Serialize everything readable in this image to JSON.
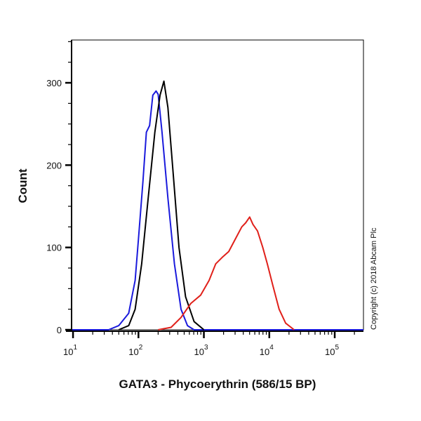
{
  "chart_data": {
    "type": "line",
    "title": "",
    "xlabel": "GATA3 - Phycoerythrin (586/15 BP)",
    "ylabel": "Count",
    "x_scale": "log",
    "xlim": [
      9.5,
      275000
    ],
    "ylim": [
      0,
      352
    ],
    "x_ticks": [
      10,
      100,
      1000,
      10000,
      100000
    ],
    "x_tick_labels": [
      {
        "base": "10",
        "exp": "1"
      },
      {
        "base": "10",
        "exp": "2"
      },
      {
        "base": "10",
        "exp": "3"
      },
      {
        "base": "10",
        "exp": "4"
      },
      {
        "base": "10",
        "exp": "5"
      }
    ],
    "y_ticks": [
      0,
      100,
      200,
      300
    ],
    "y_tick_labels": [
      "0",
      "100",
      "200",
      "300"
    ],
    "grid": false,
    "legend": "none",
    "series": [
      {
        "color": "#1a1adc",
        "x": [
          9.5,
          35,
          50,
          71,
          89,
          100,
          117,
          132,
          148,
          166,
          186,
          200,
          229,
          282,
          355,
          447,
          562,
          708,
          275000
        ],
        "y": [
          0,
          0,
          5,
          20,
          60,
          110,
          180,
          240,
          248,
          285,
          290,
          286,
          240,
          160,
          80,
          25,
          5,
          0,
          0
        ]
      },
      {
        "color": "#000000",
        "x": [
          50,
          71,
          89,
          112,
          141,
          178,
          214,
          245,
          282,
          339,
          417,
          525,
          708,
          1000
        ],
        "y": [
          0,
          5,
          25,
          80,
          160,
          240,
          285,
          302,
          270,
          190,
          100,
          40,
          10,
          0
        ]
      },
      {
        "color": "#e0201a",
        "x": [
          200,
          316,
          447,
          631,
          891,
          1202,
          1514,
          1905,
          2399,
          3020,
          3802,
          4365,
          5012,
          5623,
          6607,
          7943,
          9333,
          11220,
          14125,
          17783,
          23988
        ],
        "y": [
          0,
          3,
          15,
          32,
          42,
          60,
          80,
          88,
          95,
          110,
          125,
          130,
          137,
          128,
          120,
          100,
          80,
          55,
          25,
          8,
          0
        ]
      }
    ]
  },
  "copyright": "Copyright (c) 2018 Abcam Plc"
}
